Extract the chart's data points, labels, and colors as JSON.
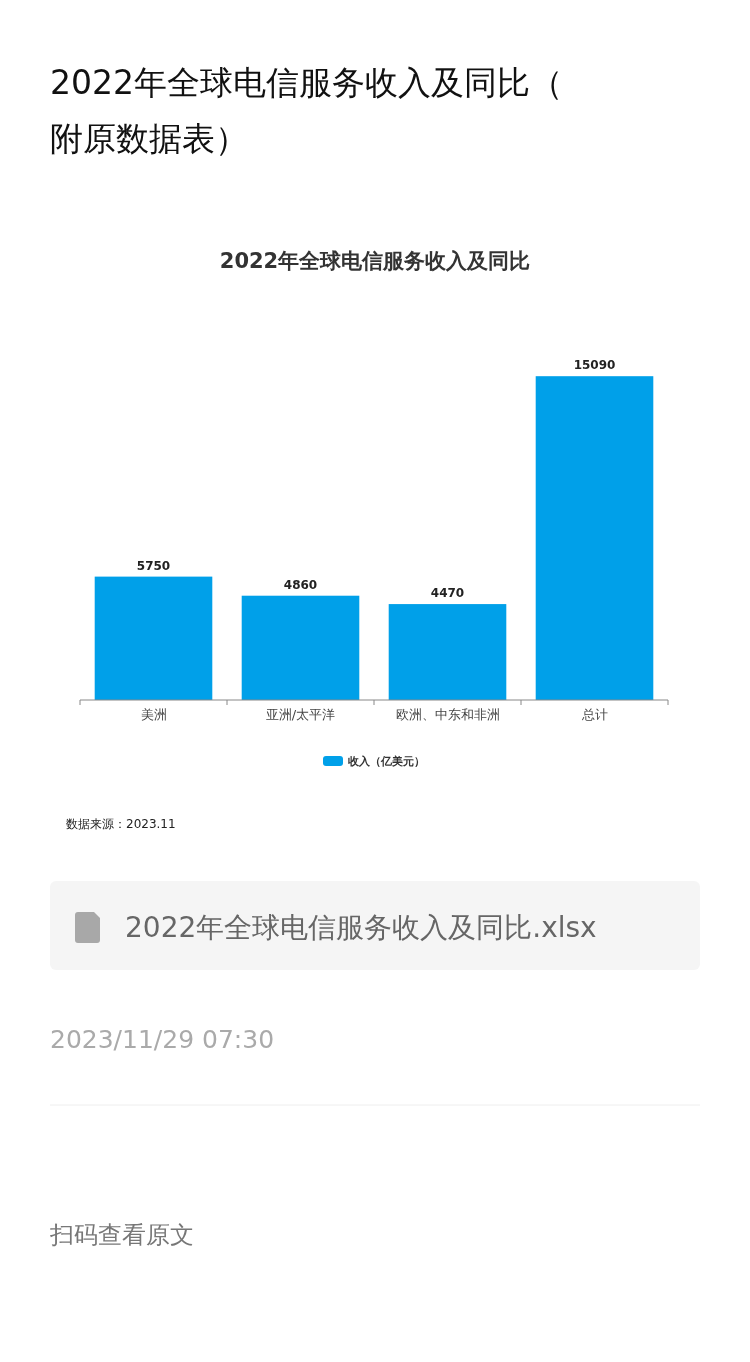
{
  "chart_data": {
    "type": "bar",
    "title": "2022年全球电信服务收入及同比",
    "categories": [
      "美洲",
      "亚洲/太平洋",
      "欧洲、中东和非洲",
      "总计"
    ],
    "series": [
      {
        "name": "收入（亿美元）",
        "color": "#00a0e9",
        "values": [
          5750,
          4860,
          4470,
          15090
        ]
      }
    ],
    "data_labels": true,
    "legend": "bottom",
    "annotations": [
      "2022年全球电信服务收入及同比（附原数据表）",
      "数据来源：2023.11",
      "2022年全球电信服务收入及同比.xlsx",
      "2023/11/29 07:30",
      "扫码查看原文"
    ]
  }
}
